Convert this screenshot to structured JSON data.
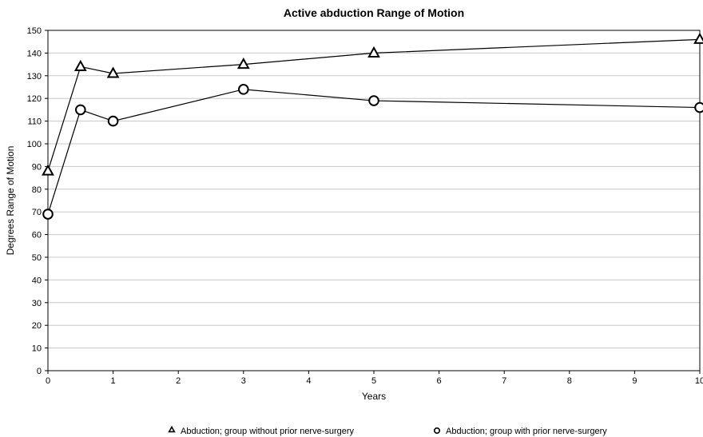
{
  "chart_data": {
    "type": "line",
    "title": "Active abduction Range of Motion",
    "xlabel": "Years",
    "ylabel": "Degrees Range of Motion",
    "xlim": [
      0,
      10
    ],
    "ylim": [
      0,
      150
    ],
    "x_ticks": [
      0,
      1,
      2,
      3,
      4,
      5,
      6,
      7,
      8,
      9,
      10
    ],
    "y_ticks": [
      0,
      10,
      20,
      30,
      40,
      50,
      60,
      70,
      80,
      90,
      100,
      110,
      120,
      130,
      140,
      150
    ],
    "grid": "horizontal",
    "legend_position": "bottom",
    "series": [
      {
        "name": "Abduction; group without prior nerve-surgery",
        "marker": "triangle",
        "x": [
          0,
          0.5,
          1,
          3,
          5,
          10
        ],
        "values": [
          88,
          134,
          131,
          135,
          140,
          146
        ]
      },
      {
        "name": "Abduction; group with prior nerve-surgery",
        "marker": "circle",
        "x": [
          0,
          0.5,
          1,
          3,
          5,
          10
        ],
        "values": [
          69,
          115,
          110,
          124,
          119,
          116
        ]
      }
    ]
  }
}
